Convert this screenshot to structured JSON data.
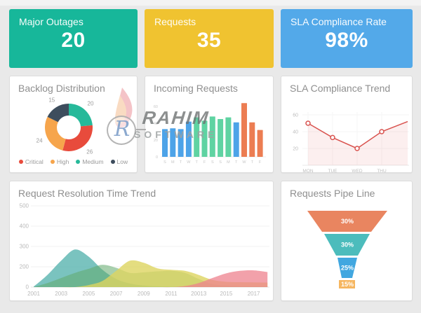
{
  "page": {
    "background": "#e9e9e9",
    "card_background": "#ffffff"
  },
  "kpis": [
    {
      "label": "Major Outages",
      "value": "20",
      "color": "#17b79a"
    },
    {
      "label": "Requests",
      "value": "35",
      "color": "#f0c330"
    },
    {
      "label": "SLA Compliance Rate",
      "value": "98%",
      "color": "#53a9e9"
    }
  ],
  "watermark": {
    "brand": "RAHIM",
    "subtitle": "SOFTWARE",
    "monogram": "R"
  },
  "chart_data": [
    {
      "type": "pie",
      "title": "Backlog Distribution",
      "donut": true,
      "slices": [
        {
          "name": "Critical",
          "value": 26,
          "color": "#e84b3c"
        },
        {
          "name": "High",
          "value": 24,
          "color": "#f6a54c"
        },
        {
          "name": "Medium",
          "value": 20,
          "color": "#26b99a"
        },
        {
          "name": "Low",
          "value": 15,
          "color": "#3d4d5d"
        }
      ],
      "draw_order": [
        "Medium",
        "Critical",
        "High",
        "Low"
      ],
      "legend_position": "bottom",
      "value_labels_shown": [
        "15",
        "20",
        "26",
        "24"
      ]
    },
    {
      "type": "bar",
      "title": "Incoming Requests",
      "categories": [
        "S",
        "M",
        "T",
        "W",
        "T",
        "F",
        "S",
        "S",
        "M",
        "T",
        "W",
        "T",
        "F"
      ],
      "values": [
        33,
        34,
        33,
        42,
        47,
        43,
        48,
        45,
        47,
        41,
        64,
        41,
        32
      ],
      "bar_colors": [
        "#4da3e8",
        "#4da3e8",
        "#4da3e8",
        "#4da3e8",
        "#5fd3a2",
        "#5fd3a2",
        "#5fd3a2",
        "#5fd3a2",
        "#5fd3a2",
        "#4da3e8",
        "#ec7d52",
        "#ec7d52",
        "#ec7d52"
      ],
      "y_ticks": [
        60,
        40,
        20,
        0
      ],
      "ylim": [
        0,
        70
      ],
      "grid": false
    },
    {
      "type": "line",
      "title": "SLA Compliance Trend",
      "x_labels": [
        "MON",
        "TUE",
        "WED",
        "THU"
      ],
      "values": [
        50,
        33,
        20,
        40,
        52
      ],
      "note": "5th point reaches right edge, unlabeled",
      "line_color": "#d9534f",
      "area_fill": "rgba(217,83,79,0.09)",
      "marker": "open-circle",
      "y_ticks": [
        60,
        40,
        20
      ],
      "ylim": [
        0,
        70
      ],
      "grid": true
    },
    {
      "type": "area",
      "title": "Request Resolution Time Trend",
      "x": [
        2001,
        2002,
        2003,
        2004,
        2005,
        2006,
        2007,
        2008,
        2009,
        2010,
        2011,
        2012,
        2013,
        2014,
        2015,
        2016,
        2017,
        2018
      ],
      "x_tick_labels": [
        "2001",
        "2003",
        "2005",
        "2007",
        "2009",
        "2011",
        "20013",
        "2015",
        "2017"
      ],
      "y_tick_labels": [
        "500",
        "400",
        "300",
        "200",
        "0"
      ],
      "ylim": [
        0,
        500
      ],
      "grid": true,
      "series": [
        {
          "name": "teal",
          "color": "rgba(77,175,170,0.75)",
          "values": [
            5,
            120,
            230,
            285,
            250,
            170,
            80,
            35,
            15,
            8,
            5,
            4,
            3,
            3,
            2,
            2,
            2,
            2
          ]
        },
        {
          "name": "green",
          "color": "rgba(96,169,107,0.55)",
          "values": [
            2,
            40,
            90,
            140,
            180,
            210,
            190,
            140,
            145,
            155,
            160,
            140,
            80,
            30,
            15,
            10,
            8,
            6
          ]
        },
        {
          "name": "yellow",
          "color": "rgba(221,213,96,0.80)",
          "values": [
            0,
            0,
            0,
            0,
            20,
            60,
            160,
            230,
            220,
            185,
            170,
            160,
            120,
            70,
            52,
            48,
            46,
            44
          ]
        },
        {
          "name": "pink",
          "color": "rgba(238,130,142,0.75)",
          "values": [
            0,
            0,
            0,
            0,
            0,
            0,
            0,
            0,
            0,
            0,
            0,
            10,
            40,
            90,
            135,
            160,
            165,
            148
          ]
        }
      ]
    },
    {
      "type": "funnel",
      "title": "Requests Pipe Line",
      "segments": [
        {
          "label": "30%",
          "color": "#e98560"
        },
        {
          "label": "30%",
          "color": "#4cbcbc"
        },
        {
          "label": "25%",
          "color": "#41a7e0"
        },
        {
          "label": "15%",
          "color": "#f6b660"
        }
      ]
    }
  ]
}
